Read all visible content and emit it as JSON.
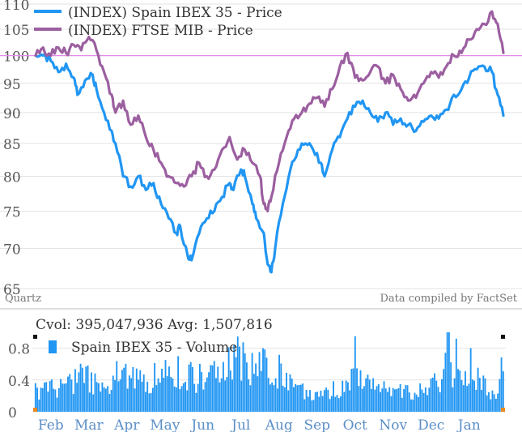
{
  "colors": {
    "ibex": "#2196f3",
    "ftse": "#9c5fa0",
    "baseline": "#e58be8",
    "grid": "#e3e3e3",
    "text": "#555555",
    "volume": "#2196f3",
    "marker": "#e8891f"
  },
  "legend": {
    "ibex_label": "(INDEX) Spain IBEX 35 - Price",
    "ftse_label": "(INDEX) FTSE MIB - Price"
  },
  "credits": {
    "left": "Quartz",
    "right": "Data compiled by FactSet"
  },
  "volume_panel": {
    "summary": "Cvol: 395,047,936 Avg: 1,507,816",
    "legend_label": "Spain IBEX 35 - Volume"
  },
  "chart_data": [
    {
      "type": "line",
      "y_scale": "log",
      "ylim": [
        65,
        110
      ],
      "y_ticks": [
        65,
        70,
        75,
        80,
        85,
        90,
        95,
        100,
        105,
        110
      ],
      "baseline": 100,
      "grid": true,
      "legend_position": "top-left",
      "x_tick_labels": [
        "Feb",
        "Mar",
        "Apr",
        "May",
        "Jun",
        "Jul",
        "Aug",
        "Sep",
        "Oct",
        "Nov",
        "Dec",
        "Jan"
      ],
      "x_range_months": [
        0,
        12.3
      ],
      "series": [
        {
          "name": "(INDEX) Spain IBEX 35 - Price",
          "color_key": "ibex",
          "points": [
            [
              0,
              100
            ],
            [
              0.2,
              100
            ],
            [
              0.4,
              99
            ],
            [
              0.6,
              97
            ],
            [
              0.8,
              98.5
            ],
            [
              1.0,
              96
            ],
            [
              1.1,
              93
            ],
            [
              1.3,
              95.5
            ],
            [
              1.5,
              96.5
            ],
            [
              1.6,
              94
            ],
            [
              1.8,
              90
            ],
            [
              2.0,
              87
            ],
            [
              2.1,
              85
            ],
            [
              2.3,
              80
            ],
            [
              2.5,
              78.5
            ],
            [
              2.7,
              80
            ],
            [
              2.9,
              78
            ],
            [
              3.1,
              79
            ],
            [
              3.3,
              76
            ],
            [
              3.5,
              74
            ],
            [
              3.7,
              72
            ],
            [
              3.8,
              73
            ],
            [
              4.0,
              69
            ],
            [
              4.1,
              68.5
            ],
            [
              4.3,
              72
            ],
            [
              4.5,
              74
            ],
            [
              4.7,
              75
            ],
            [
              4.9,
              77
            ],
            [
              5.1,
              79
            ],
            [
              5.2,
              78
            ],
            [
              5.4,
              81
            ],
            [
              5.5,
              80
            ],
            [
              5.7,
              76
            ],
            [
              5.8,
              74
            ],
            [
              6.0,
              72
            ],
            [
              6.1,
              68
            ],
            [
              6.2,
              67
            ],
            [
              6.3,
              70
            ],
            [
              6.5,
              76
            ],
            [
              6.7,
              81
            ],
            [
              6.9,
              84
            ],
            [
              7.1,
              85
            ],
            [
              7.3,
              84
            ],
            [
              7.5,
              82
            ],
            [
              7.6,
              80
            ],
            [
              7.8,
              84
            ],
            [
              8.0,
              86
            ],
            [
              8.2,
              89
            ],
            [
              8.4,
              91
            ],
            [
              8.6,
              92
            ],
            [
              8.8,
              90
            ],
            [
              9.0,
              88.5
            ],
            [
              9.2,
              90
            ],
            [
              9.4,
              88
            ],
            [
              9.6,
              89
            ],
            [
              9.8,
              88
            ],
            [
              10.0,
              87
            ],
            [
              10.2,
              88.5
            ],
            [
              10.4,
              89.5
            ],
            [
              10.6,
              89
            ],
            [
              10.8,
              90.5
            ],
            [
              11.0,
              93
            ],
            [
              11.2,
              94
            ],
            [
              11.4,
              96
            ],
            [
              11.6,
              97.5
            ],
            [
              11.8,
              98
            ],
            [
              12.0,
              97
            ],
            [
              12.15,
              93
            ],
            [
              12.3,
              89.5
            ]
          ]
        },
        {
          "name": "(INDEX) FTSE MIB - Price",
          "color_key": "ftse",
          "points": [
            [
              0,
              100
            ],
            [
              0.2,
              101.5
            ],
            [
              0.4,
              100
            ],
            [
              0.6,
              101.5
            ],
            [
              0.8,
              100.5
            ],
            [
              1.0,
              102
            ],
            [
              1.2,
              101
            ],
            [
              1.4,
              103.5
            ],
            [
              1.6,
              101
            ],
            [
              1.8,
              97
            ],
            [
              2.0,
              93
            ],
            [
              2.1,
              90
            ],
            [
              2.3,
              92
            ],
            [
              2.5,
              88
            ],
            [
              2.7,
              89.5
            ],
            [
              2.9,
              86
            ],
            [
              3.1,
              84
            ],
            [
              3.3,
              82
            ],
            [
              3.5,
              80
            ],
            [
              3.7,
              79
            ],
            [
              3.9,
              78.5
            ],
            [
              4.1,
              80
            ],
            [
              4.3,
              82
            ],
            [
              4.5,
              80
            ],
            [
              4.7,
              81
            ],
            [
              4.9,
              84
            ],
            [
              5.1,
              86
            ],
            [
              5.3,
              82.5
            ],
            [
              5.5,
              84
            ],
            [
              5.7,
              82
            ],
            [
              5.9,
              80
            ],
            [
              6.0,
              76
            ],
            [
              6.1,
              75
            ],
            [
              6.2,
              77
            ],
            [
              6.4,
              82
            ],
            [
              6.6,
              86
            ],
            [
              6.8,
              89
            ],
            [
              7.0,
              90
            ],
            [
              7.2,
              91.5
            ],
            [
              7.4,
              92.5
            ],
            [
              7.6,
              91
            ],
            [
              7.8,
              94
            ],
            [
              8.0,
              98
            ],
            [
              8.2,
              100.5
            ],
            [
              8.4,
              96
            ],
            [
              8.6,
              95.5
            ],
            [
              8.8,
              97
            ],
            [
              9.0,
              98
            ],
            [
              9.2,
              95
            ],
            [
              9.4,
              96.5
            ],
            [
              9.6,
              94
            ],
            [
              9.8,
              92
            ],
            [
              10.0,
              92.5
            ],
            [
              10.2,
              95
            ],
            [
              10.4,
              97
            ],
            [
              10.6,
              96
            ],
            [
              10.8,
              98
            ],
            [
              11.0,
              100
            ],
            [
              11.2,
              100.5
            ],
            [
              11.4,
              103
            ],
            [
              11.6,
              105
            ],
            [
              11.8,
              106
            ],
            [
              12.0,
              108.5
            ],
            [
              12.15,
              106
            ],
            [
              12.3,
              100.5
            ]
          ]
        }
      ]
    },
    {
      "type": "bar",
      "series_name": "Spain IBEX 35 - Volume",
      "ylim": [
        0,
        1.0
      ],
      "y_ticks": [
        0,
        0.4,
        0.8
      ],
      "x_tick_labels": [
        "Feb",
        "Mar",
        "Apr",
        "May",
        "Jun",
        "Jul",
        "Aug",
        "Sep",
        "Oct",
        "Nov",
        "Dec",
        "Jan"
      ],
      "volume_keypoints": [
        [
          0,
          0.26
        ],
        [
          0.5,
          0.3
        ],
        [
          1,
          0.38
        ],
        [
          1.3,
          0.45
        ],
        [
          1.6,
          0.35
        ],
        [
          2,
          0.32
        ],
        [
          2.2,
          0.5
        ],
        [
          2.5,
          0.4
        ],
        [
          3,
          0.38
        ],
        [
          3.5,
          0.55
        ],
        [
          4,
          0.45
        ],
        [
          4.5,
          0.4
        ],
        [
          5,
          0.55
        ],
        [
          5.4,
          0.7
        ],
        [
          5.8,
          0.45
        ],
        [
          6.0,
          0.65
        ],
        [
          6.3,
          0.55
        ],
        [
          6.6,
          0.45
        ],
        [
          7,
          0.26
        ],
        [
          7.5,
          0.2
        ],
        [
          8,
          0.3
        ],
        [
          8.4,
          0.45
        ],
        [
          8.7,
          0.35
        ],
        [
          9,
          0.3
        ],
        [
          9.5,
          0.26
        ],
        [
          10,
          0.24
        ],
        [
          10.5,
          0.35
        ],
        [
          10.8,
          0.55
        ],
        [
          11,
          0.45
        ],
        [
          11.3,
          0.4
        ],
        [
          11.6,
          0.42
        ],
        [
          11.9,
          0.3
        ],
        [
          12.1,
          0.25
        ],
        [
          12.3,
          0.6
        ]
      ],
      "volume_peaks": [
        [
          8.4,
          0.95
        ],
        [
          10.85,
          1.0
        ],
        [
          11.05,
          0.92
        ],
        [
          11.45,
          0.8
        ],
        [
          5.35,
          0.82
        ],
        [
          6.0,
          0.8
        ]
      ]
    }
  ]
}
